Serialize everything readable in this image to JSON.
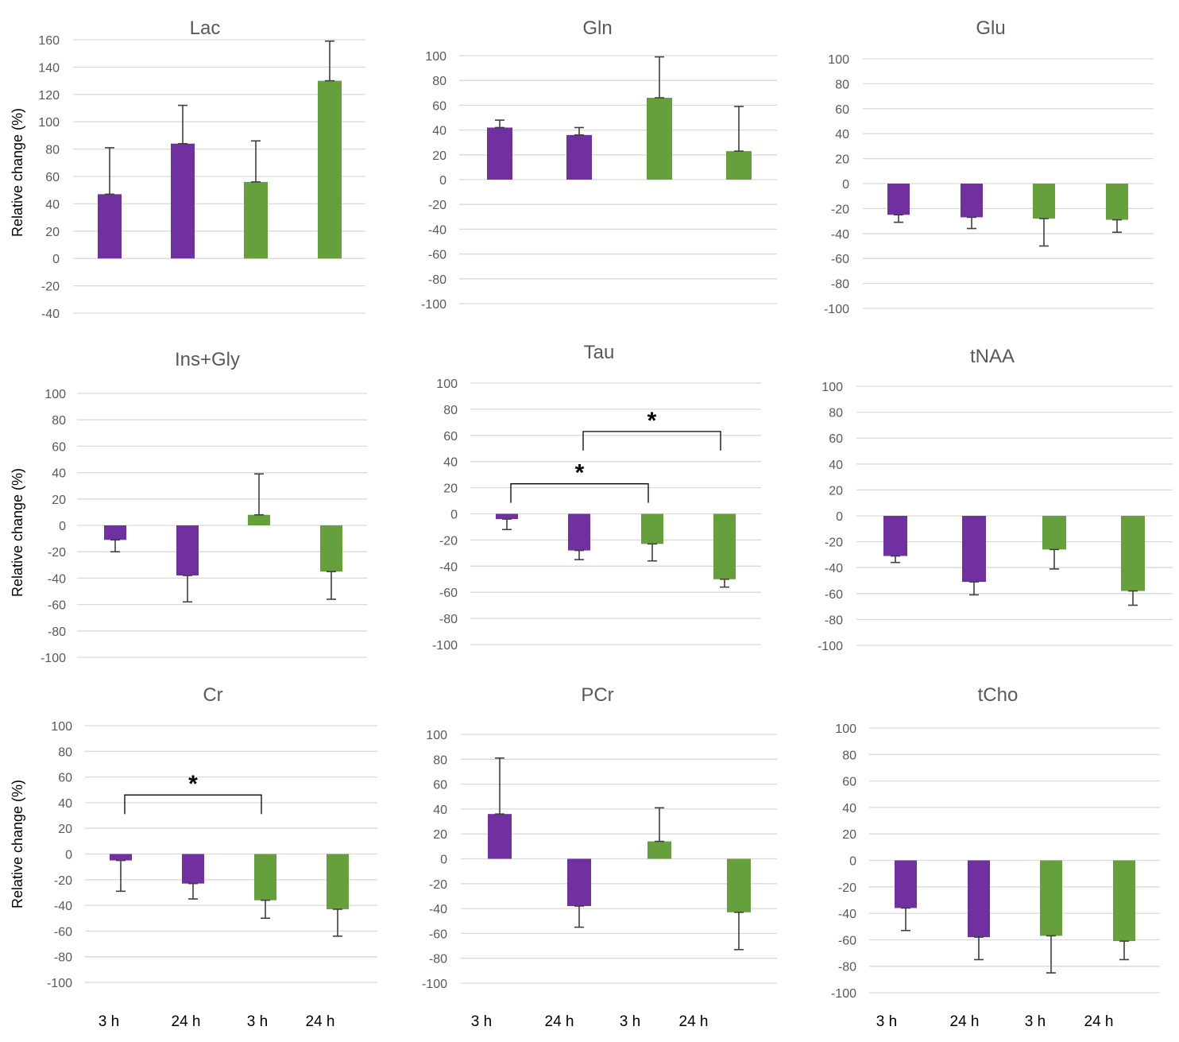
{
  "colors": {
    "purple": "#7030a0",
    "green": "#66a03c",
    "grid": "#d9d9d9",
    "text": "#595959"
  },
  "ylabel": "Relative change (%)",
  "x_categories": [
    "3 h",
    "24 h",
    "3 h",
    "24 h"
  ],
  "chart_data": [
    {
      "type": "bar",
      "title": "Lac",
      "ylabel": "Relative change (%)",
      "ylim": [
        -40,
        160
      ],
      "yticks": [
        "160",
        "140",
        "120",
        "100",
        "80",
        "60",
        "40",
        "20",
        "0",
        "-20",
        "-40"
      ],
      "values": [
        47,
        84,
        56,
        130
      ],
      "errors": [
        34,
        28,
        30,
        29
      ],
      "bar_colors": [
        "purple",
        "purple",
        "green",
        "green"
      ],
      "significance": []
    },
    {
      "type": "bar",
      "title": "Gln",
      "ylabel": "",
      "ylim": [
        -100,
        100
      ],
      "yticks": [
        "100",
        "80",
        "60",
        "40",
        "20",
        "0",
        "-20",
        "-40",
        "-60",
        "-80",
        "-100"
      ],
      "values": [
        42,
        36,
        66,
        23
      ],
      "errors": [
        6,
        6,
        33,
        36
      ],
      "bar_colors": [
        "purple",
        "purple",
        "green",
        "green"
      ],
      "significance": []
    },
    {
      "type": "bar",
      "title": "Glu",
      "ylabel": "",
      "ylim": [
        -100,
        100
      ],
      "yticks": [
        "100",
        "80",
        "60",
        "40",
        "20",
        "0",
        "-20",
        "-40",
        "-60",
        "-80",
        "-100"
      ],
      "values": [
        -25,
        -27,
        -28,
        -29
      ],
      "errors": [
        6,
        9,
        22,
        10
      ],
      "bar_colors": [
        "purple",
        "purple",
        "green",
        "green"
      ],
      "significance": []
    },
    {
      "type": "bar",
      "title": "Ins+Gly",
      "ylabel": "Relative change (%)",
      "ylim": [
        -100,
        100
      ],
      "yticks": [
        "100",
        "80",
        "60",
        "40",
        "20",
        "0",
        "-20",
        "-40",
        "-60",
        "-80",
        "-100"
      ],
      "values": [
        -11,
        -38,
        8,
        -35
      ],
      "errors": [
        9,
        20,
        31,
        21
      ],
      "bar_colors": [
        "purple",
        "purple",
        "green",
        "green"
      ],
      "significance": []
    },
    {
      "type": "bar",
      "title": "Tau",
      "ylabel": "",
      "ylim": [
        -100,
        100
      ],
      "yticks": [
        "100",
        "80",
        "60",
        "40",
        "20",
        "0",
        "-20",
        "-40",
        "-60",
        "-80",
        "-100"
      ],
      "values": [
        -4,
        -28,
        -23,
        -50
      ],
      "errors": [
        8,
        7,
        13,
        6
      ],
      "bar_colors": [
        "purple",
        "purple",
        "green",
        "green"
      ],
      "significance": [
        {
          "from": 0,
          "to": 2,
          "level": 23,
          "label": "*"
        },
        {
          "from": 1,
          "to": 3,
          "level": 63,
          "label": "*"
        }
      ]
    },
    {
      "type": "bar",
      "title": "tNAA",
      "ylabel": "",
      "ylim": [
        -100,
        100
      ],
      "yticks": [
        "100",
        "80",
        "60",
        "40",
        "20",
        "0",
        "-20",
        "-40",
        "-60",
        "-80",
        "-100"
      ],
      "values": [
        -31,
        -51,
        -26,
        -58
      ],
      "errors": [
        5,
        10,
        15,
        11
      ],
      "bar_colors": [
        "purple",
        "purple",
        "green",
        "green"
      ],
      "significance": []
    },
    {
      "type": "bar",
      "title": "Cr",
      "ylabel": "Relative change (%)",
      "ylim": [
        -100,
        100
      ],
      "yticks": [
        "100",
        "80",
        "60",
        "40",
        "20",
        "0",
        "-20",
        "-40",
        "-60",
        "-80",
        "-100"
      ],
      "values": [
        -5,
        -23,
        -36,
        -43
      ],
      "errors": [
        24,
        12,
        14,
        21
      ],
      "bar_colors": [
        "purple",
        "purple",
        "green",
        "green"
      ],
      "significance": [
        {
          "from": 0,
          "to": 2,
          "level": 46,
          "label": "*"
        }
      ]
    },
    {
      "type": "bar",
      "title": "PCr",
      "ylabel": "",
      "ylim": [
        -100,
        100
      ],
      "yticks": [
        "100",
        "80",
        "60",
        "40",
        "20",
        "0",
        "-20",
        "-40",
        "-60",
        "-80",
        "-100"
      ],
      "values": [
        36,
        -38,
        14,
        -43
      ],
      "errors": [
        45,
        17,
        27,
        30
      ],
      "bar_colors": [
        "purple",
        "purple",
        "green",
        "green"
      ],
      "significance": []
    },
    {
      "type": "bar",
      "title": "tCho",
      "ylabel": "",
      "ylim": [
        -100,
        100
      ],
      "yticks": [
        "100",
        "80",
        "60",
        "40",
        "20",
        "0",
        "-20",
        "-40",
        "-60",
        "-80",
        "-100"
      ],
      "values": [
        -36,
        -58,
        -57,
        -61
      ],
      "errors": [
        17,
        17,
        28,
        14
      ],
      "bar_colors": [
        "purple",
        "purple",
        "green",
        "green"
      ],
      "significance": []
    }
  ]
}
